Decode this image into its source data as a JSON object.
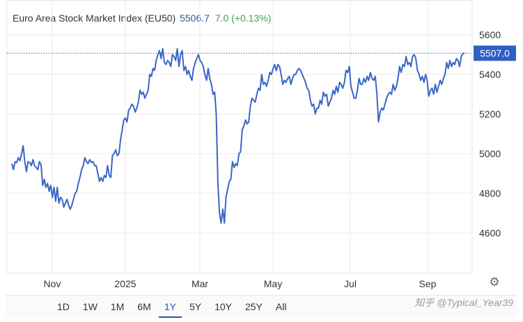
{
  "header": {
    "title": "Euro Area Stock Market Index (EU50)",
    "price": "5506.7",
    "change": "7.0 (+0.13%)"
  },
  "colors": {
    "line": "#3a65c8",
    "grid": "#e9e9e9",
    "price_text": "#2b55a4",
    "change_text": "#3aa54a",
    "label_bg": "#2f5fc4"
  },
  "chart_data": {
    "type": "line",
    "series": [
      {
        "values": [
          4950,
          4920,
          4960,
          4955,
          4980,
          4965,
          5000,
          5040,
          4960,
          4910,
          4960,
          4955,
          4940,
          4970,
          4940,
          4930,
          4920,
          4960,
          4945,
          4840,
          4870,
          4830,
          4850,
          4810,
          4840,
          4780,
          4830,
          4760,
          4830,
          4750,
          4780,
          4770,
          4730,
          4750,
          4770,
          4740,
          4720,
          4740,
          4770,
          4800,
          4810,
          4850,
          4880,
          4920,
          4940,
          4980,
          4960,
          4950,
          4970,
          4955,
          4960,
          4940,
          4940,
          4900,
          4860,
          4880,
          4860,
          4890,
          4880,
          4940,
          4890,
          4880,
          4990,
          5000,
          5020,
          4990,
          5000,
          5070,
          5120,
          5170,
          5180,
          5160,
          5220,
          5230,
          5250,
          5240,
          5210,
          5230,
          5260,
          5320,
          5300,
          5310,
          5280,
          5300,
          5320,
          5400,
          5390,
          5430,
          5420,
          5470,
          5500,
          5520,
          5480,
          5530,
          5460,
          5450,
          5470,
          5460,
          5440,
          5500,
          5490,
          5470,
          5530,
          5440,
          5500,
          5520,
          5420,
          5440,
          5400,
          5420,
          5390,
          5370,
          5430,
          5460,
          5480,
          5500,
          5470,
          5460,
          5440,
          5400,
          5370,
          5430,
          5380,
          5350,
          5300,
          5310,
          5200,
          4850,
          4700,
          4650,
          4720,
          4650,
          4780,
          4820,
          4860,
          4870,
          4960,
          4930,
          4950,
          4940,
          5000,
          5010,
          5120,
          5140,
          5170,
          5150,
          5160,
          5240,
          5280,
          5270,
          5260,
          5300,
          5330,
          5320,
          5400,
          5350,
          5360,
          5340,
          5370,
          5410,
          5400,
          5430,
          5450,
          5420,
          5450,
          5440,
          5400,
          5350,
          5370,
          5360,
          5380,
          5390,
          5350,
          5380,
          5400,
          5400,
          5420,
          5430,
          5420,
          5400,
          5380,
          5360,
          5330,
          5320,
          5270,
          5240,
          5250,
          5200,
          5230,
          5230,
          5270,
          5250,
          5310,
          5290,
          5300,
          5240,
          5260,
          5280,
          5320,
          5300,
          5340,
          5310,
          5360,
          5350,
          5330,
          5360,
          5420,
          5410,
          5440,
          5340,
          5310,
          5280,
          5280,
          5320,
          5380,
          5350,
          5350,
          5380,
          5360,
          5390,
          5370,
          5410,
          5380,
          5370,
          5390,
          5300,
          5160,
          5210,
          5230,
          5220,
          5250,
          5280,
          5300,
          5310,
          5300,
          5350,
          5320,
          5340,
          5380,
          5440,
          5410,
          5450,
          5440,
          5490,
          5450,
          5460,
          5440,
          5490,
          5500,
          5480,
          5420,
          5400,
          5370,
          5390,
          5360,
          5400,
          5370,
          5290,
          5320,
          5330,
          5300,
          5350,
          5310,
          5340,
          5370,
          5350,
          5380,
          5400,
          5460,
          5430,
          5470,
          5440,
          5460,
          5450,
          5480,
          5470,
          5440,
          5490,
          5505,
          5507
        ]
      }
    ],
    "current_value_label": "5507.0",
    "ylim": [
      4400,
      5700
    ],
    "y_ticks": [
      "5600",
      "5400",
      "5200",
      "5000",
      "4800",
      "4600"
    ],
    "x_labels": [
      "Nov",
      "2025",
      "Mar",
      "May",
      "Jul",
      "Sep"
    ],
    "grid": true
  },
  "range_tabs": [
    "1D",
    "1W",
    "1M",
    "6M",
    "1Y",
    "5Y",
    "10Y",
    "25Y",
    "All"
  ],
  "active_tab": "1Y",
  "watermark": "知乎 @Typical_Year39"
}
